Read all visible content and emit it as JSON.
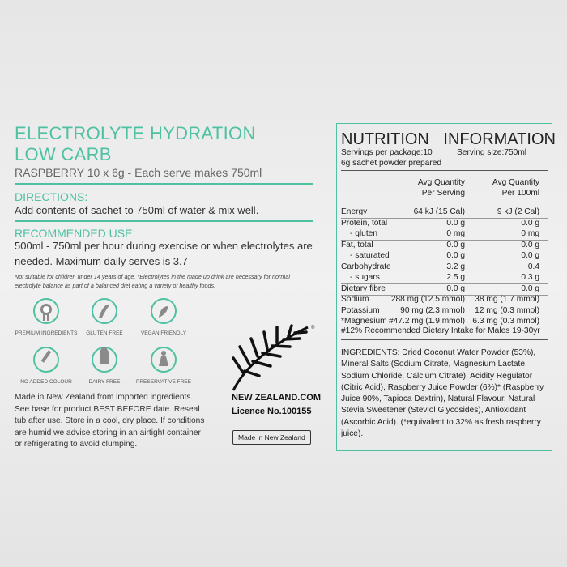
{
  "left": {
    "title": [
      "ELECTROLYTE HYDRATION",
      "LOW CARB"
    ],
    "subtitle": "RASPBERRY 10 x 6g - Each serve makes 750ml",
    "directions": {
      "heading": "DIRECTIONS:",
      "text": "Add contents of sachet to 750ml of water & mix well."
    },
    "recommended_use": {
      "heading": "RECOMMENDED USE:",
      "text": "500ml - 750ml per hour during exercise or when electrolytes are needed. Maximum daily serves is 3.7"
    },
    "footnote": "Not suitable for children under 14 years of age. *Electrolytes in the made up drink are necessary for normal electrolyte balance as part of a balanced diet eating a variety of healthy foods.",
    "badges": [
      "PREMIUM INGREDIENTS",
      "GLUTEN FREE",
      "VEGAN FRIENDLY",
      "NO ADDED COLOUR",
      "DAIRY FREE",
      "PRESERVATIVE FREE"
    ],
    "storage": "Made in New Zealand from imported ingredients. See base for product BEST BEFORE date. Reseal tub after use. Store in a cool, dry place. If conditions are humid we advise storing in an airtight container or refrigerating to avoid clumping.",
    "logo": {
      "site": "NEW ZEALAND.COM",
      "licence": "Licence No.100155",
      "made_in": "Made in New Zealand"
    }
  },
  "nutrition": {
    "title": "NUTRITION INFORMATION",
    "servings": "Servings per package:10",
    "serving_size": "Serving size:750ml",
    "prepared": "6g sachet powder prepared",
    "columns": [
      [
        "Avg Quantity",
        "Per Serving"
      ],
      [
        "Avg Quantity",
        "Per 100ml"
      ]
    ],
    "rows": [
      [
        "Energy",
        "64 kJ (15 Cal)",
        "9 kJ (2 Cal)"
      ],
      [
        "Protein, total",
        "0.0 g",
        "0.0 g"
      ],
      [
        "- gluten",
        "0 mg",
        "0 mg"
      ],
      [
        "Fat, total",
        "0.0 g",
        "0.0 g"
      ],
      [
        "- saturated",
        "0.0 g",
        "0.0 g"
      ],
      [
        "Carbohydrate",
        "3.2 g",
        "0.4"
      ],
      [
        "- sugars",
        "2.5 g",
        "0.3 g"
      ],
      [
        "Dietary fibre",
        "0.0 g",
        "0.0 g"
      ],
      [
        "Sodium",
        "288 mg (12.5 mmol)",
        "38 mg (1.7 mmol)"
      ],
      [
        "Potassium",
        "90 mg (2.3 mmol)",
        "12 mg (0.3 mmol)"
      ],
      [
        "*Magnesium",
        "#47.2 mg (1.9 mmol)",
        "6.3 mg (0.3 mmol)"
      ]
    ],
    "note": "#12% Recommended Dietary Intake for Males 19-30yr",
    "ingredients": "INGREDIENTS: Dried Coconut Water Powder (53%), Mineral Salts (Sodium Citrate, Magnesium Lactate, Sodium Chloride, Calcium Citrate), Acidity Regulator (Citric Acid), Raspberry Juice Powder (6%)* (Raspberry Juice 90%, Tapioca Dextrin), Natural Flavour, Natural Stevia Sweetener (Steviol Glycosides), Antioxidant (Ascorbic Acid). (*equivalent to 32% as fresh raspberry juice)."
  }
}
